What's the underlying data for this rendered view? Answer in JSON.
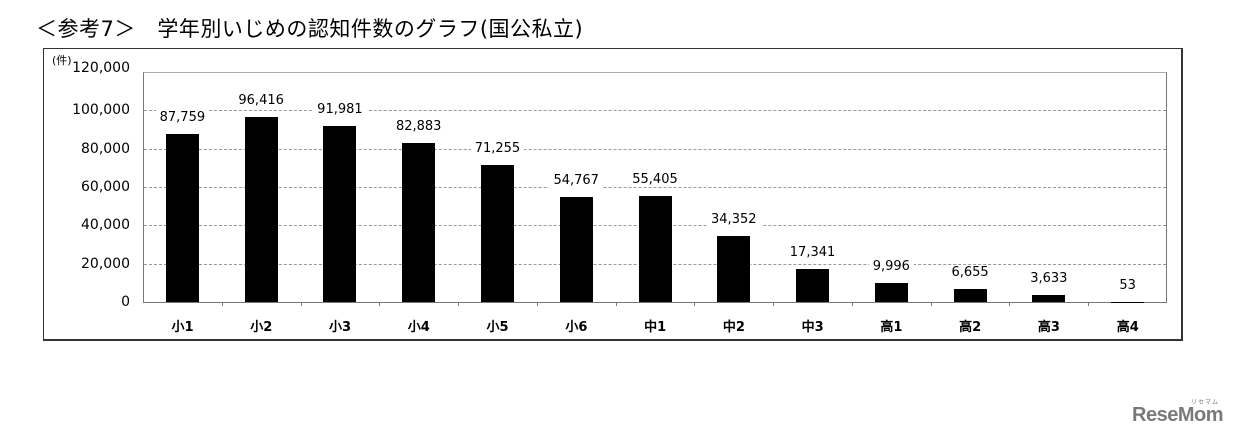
{
  "title": "＜参考7＞　学年別いじめの認知件数のグラフ(国公私立)",
  "unit_label": "(件)",
  "watermark": {
    "text": "ReseMom",
    "kana": "リセマム"
  },
  "chart_data": {
    "type": "bar",
    "title": "学年別いじめの認知件数のグラフ(国公私立)",
    "xlabel": "",
    "ylabel": "(件)",
    "ylim": [
      0,
      120000
    ],
    "yticks": [
      0,
      20000,
      40000,
      60000,
      80000,
      100000,
      120000
    ],
    "ytick_labels": [
      "0",
      "20,000",
      "40,000",
      "60,000",
      "80,000",
      "100,000",
      "120,000"
    ],
    "grid": true,
    "legend": null,
    "categories": [
      "小1",
      "小2",
      "小3",
      "小4",
      "小5",
      "小6",
      "中1",
      "中2",
      "中3",
      "高1",
      "高2",
      "高3",
      "高4"
    ],
    "values": [
      87759,
      96416,
      91981,
      82883,
      71255,
      54767,
      55405,
      34352,
      17341,
      9996,
      6655,
      3633,
      53
    ],
    "value_labels": [
      "87,759",
      "96,416",
      "91,981",
      "82,883",
      "71,255",
      "54,767",
      "55,405",
      "34,352",
      "17,341",
      "9,996",
      "6,655",
      "3,633",
      "53"
    ],
    "bar_color": "#000000"
  }
}
